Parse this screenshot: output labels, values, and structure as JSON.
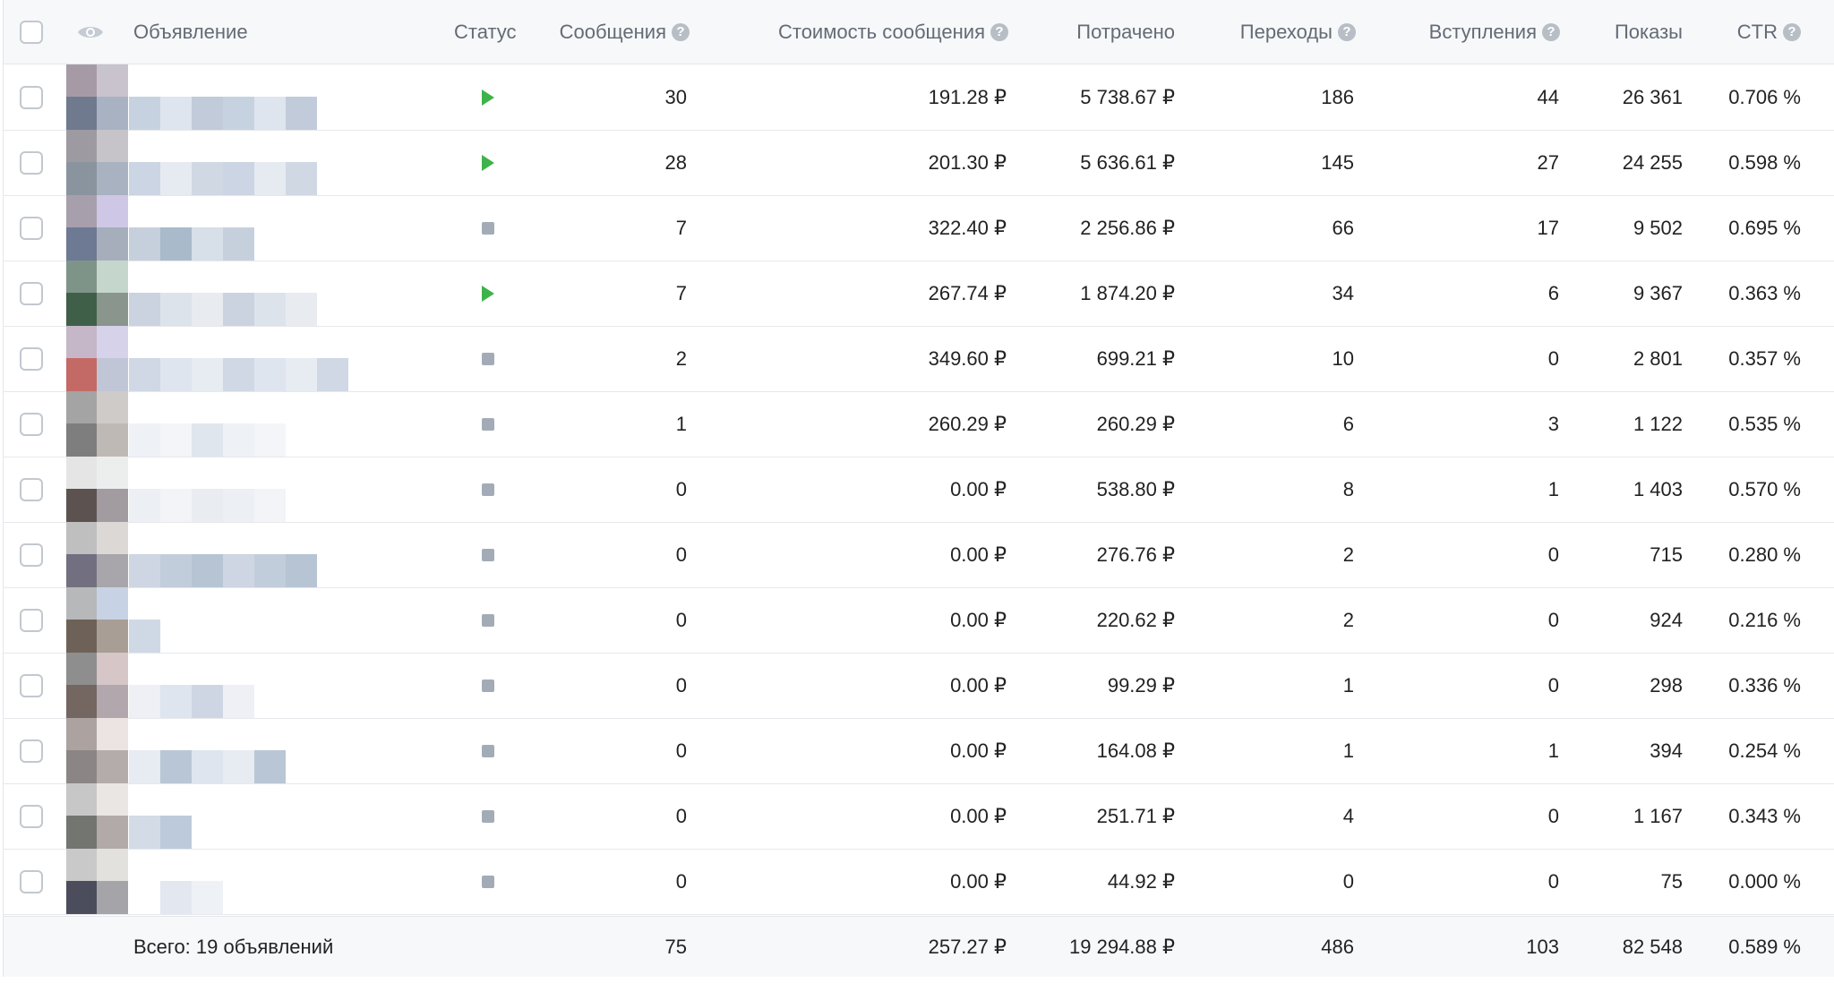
{
  "columns": {
    "ad": "Объявление",
    "status": "Статус",
    "messages": "Сообщения",
    "message_cost": "Стоимость сообщения",
    "spent": "Потрачено",
    "clicks": "Переходы",
    "joins": "Вступления",
    "impressions": "Показы",
    "ctr": "CTR",
    "help_glyph": "?"
  },
  "rows": [
    {
      "status": "active",
      "messages": "30",
      "message_cost": "191.28 ₽",
      "spent": "5 738.67 ₽",
      "clicks": "186",
      "joins": "44",
      "impressions": "26 361",
      "ctr": "0.706 %"
    },
    {
      "status": "active",
      "messages": "28",
      "message_cost": "201.30 ₽",
      "spent": "5 636.61 ₽",
      "clicks": "145",
      "joins": "27",
      "impressions": "24 255",
      "ctr": "0.598 %"
    },
    {
      "status": "stopped",
      "messages": "7",
      "message_cost": "322.40 ₽",
      "spent": "2 256.86 ₽",
      "clicks": "66",
      "joins": "17",
      "impressions": "9 502",
      "ctr": "0.695 %"
    },
    {
      "status": "active",
      "messages": "7",
      "message_cost": "267.74 ₽",
      "spent": "1 874.20 ₽",
      "clicks": "34",
      "joins": "6",
      "impressions": "9 367",
      "ctr": "0.363 %"
    },
    {
      "status": "stopped",
      "messages": "2",
      "message_cost": "349.60 ₽",
      "spent": "699.21 ₽",
      "clicks": "10",
      "joins": "0",
      "impressions": "2 801",
      "ctr": "0.357 %"
    },
    {
      "status": "stopped",
      "messages": "1",
      "message_cost": "260.29 ₽",
      "spent": "260.29 ₽",
      "clicks": "6",
      "joins": "3",
      "impressions": "1 122",
      "ctr": "0.535 %"
    },
    {
      "status": "stopped",
      "messages": "0",
      "message_cost": "0.00 ₽",
      "spent": "538.80 ₽",
      "clicks": "8",
      "joins": "1",
      "impressions": "1 403",
      "ctr": "0.570 %"
    },
    {
      "status": "stopped",
      "messages": "0",
      "message_cost": "0.00 ₽",
      "spent": "276.76 ₽",
      "clicks": "2",
      "joins": "0",
      "impressions": "715",
      "ctr": "0.280 %"
    },
    {
      "status": "stopped",
      "messages": "0",
      "message_cost": "0.00 ₽",
      "spent": "220.62 ₽",
      "clicks": "2",
      "joins": "0",
      "impressions": "924",
      "ctr": "0.216 %"
    },
    {
      "status": "stopped",
      "messages": "0",
      "message_cost": "0.00 ₽",
      "spent": "99.29 ₽",
      "clicks": "1",
      "joins": "0",
      "impressions": "298",
      "ctr": "0.336 %"
    },
    {
      "status": "stopped",
      "messages": "0",
      "message_cost": "0.00 ₽",
      "spent": "164.08 ₽",
      "clicks": "1",
      "joins": "1",
      "impressions": "394",
      "ctr": "0.254 %"
    },
    {
      "status": "stopped",
      "messages": "0",
      "message_cost": "0.00 ₽",
      "spent": "251.71 ₽",
      "clicks": "4",
      "joins": "0",
      "impressions": "1 167",
      "ctr": "0.343 %"
    },
    {
      "status": "stopped",
      "messages": "0",
      "message_cost": "0.00 ₽",
      "spent": "44.92 ₽",
      "clicks": "0",
      "joins": "0",
      "impressions": "75",
      "ctr": "0.000 %"
    }
  ],
  "footer": {
    "label": "Всего: 19 объявлений",
    "messages": "75",
    "message_cost": "257.27 ₽",
    "spent": "19 294.88 ₽",
    "clicks": "486",
    "joins": "103",
    "impressions": "82 548",
    "ctr": "0.589 %"
  },
  "colors": {
    "active": "#3db34a",
    "stopped": "#a3acb6"
  },
  "icons": {
    "eye": "eye-icon",
    "help": "help-icon",
    "play": "play-icon",
    "stop": "stop-icon"
  }
}
